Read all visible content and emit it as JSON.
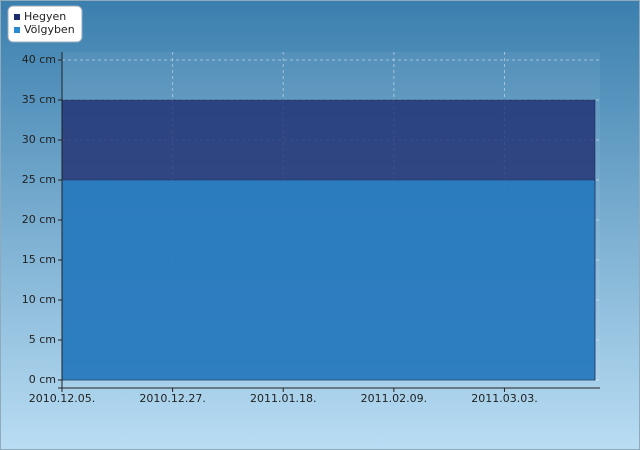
{
  "chart_data": {
    "type": "area",
    "x": [
      0,
      106
    ],
    "xlim": [
      0,
      107
    ],
    "xticks": [
      {
        "value": 0,
        "label": "2010.12.05."
      },
      {
        "value": 22,
        "label": "2010.12.27."
      },
      {
        "value": 44,
        "label": "2011.01.18."
      },
      {
        "value": 66,
        "label": "2011.02.09."
      },
      {
        "value": 88,
        "label": "2011.03.03."
      }
    ],
    "ylim": [
      0,
      41
    ],
    "yticks": [
      {
        "value": 0,
        "label": "0 cm"
      },
      {
        "value": 5,
        "label": "5 cm"
      },
      {
        "value": 10,
        "label": "10 cm"
      },
      {
        "value": 15,
        "label": "15 cm"
      },
      {
        "value": 20,
        "label": "20 cm"
      },
      {
        "value": 25,
        "label": "25 cm"
      },
      {
        "value": 30,
        "label": "30 cm"
      },
      {
        "value": 35,
        "label": "35 cm"
      },
      {
        "value": 40,
        "label": "40 cm"
      }
    ],
    "grid": true,
    "legend": "top-left",
    "series": [
      {
        "name": "Hegyen",
        "color": "#1c2a6e",
        "values": [
          35,
          35
        ]
      },
      {
        "name": "Völgyben",
        "color": "#2a8cd0",
        "values": [
          25,
          25
        ]
      }
    ]
  }
}
